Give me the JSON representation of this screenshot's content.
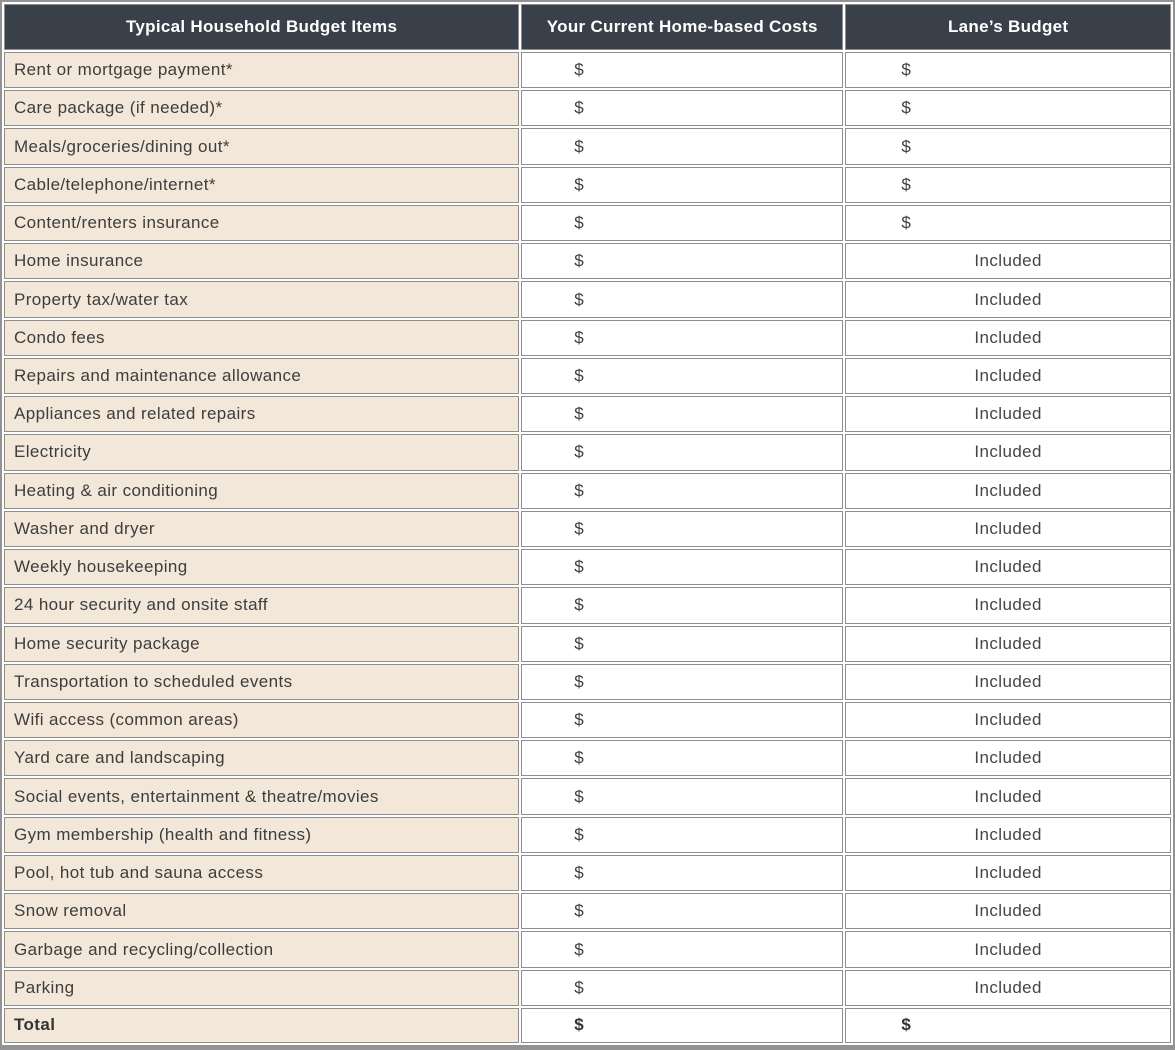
{
  "table": {
    "columns": [
      {
        "label": "Typical Household Budget Items"
      },
      {
        "label": "Your Current Home-based Costs"
      },
      {
        "label": "Lane’s Budget"
      }
    ],
    "currency_placeholder": "$",
    "included_label": "Included",
    "rows": [
      {
        "item": "Rent or mortgage payment*",
        "current": "$",
        "lane": "$"
      },
      {
        "item": "Care package (if needed)*",
        "current": "$",
        "lane": "$"
      },
      {
        "item": "Meals/groceries/dining out*",
        "current": "$",
        "lane": "$"
      },
      {
        "item": "Cable/telephone/internet*",
        "current": "$",
        "lane": "$"
      },
      {
        "item": "Content/renters insurance",
        "current": "$",
        "lane": "$"
      },
      {
        "item": "Home insurance",
        "current": "$",
        "lane": "Included"
      },
      {
        "item": "Property tax/water tax",
        "current": "$",
        "lane": "Included"
      },
      {
        "item": "Condo fees",
        "current": "$",
        "lane": "Included"
      },
      {
        "item": "Repairs and maintenance allowance",
        "current": "$",
        "lane": "Included"
      },
      {
        "item": "Appliances and related repairs",
        "current": "$",
        "lane": "Included"
      },
      {
        "item": "Electricity",
        "current": "$",
        "lane": "Included"
      },
      {
        "item": "Heating & air conditioning",
        "current": "$",
        "lane": "Included"
      },
      {
        "item": "Washer and dryer",
        "current": "$",
        "lane": "Included"
      },
      {
        "item": "Weekly housekeeping",
        "current": "$",
        "lane": "Included"
      },
      {
        "item": "24 hour security and onsite staff",
        "current": "$",
        "lane": "Included"
      },
      {
        "item": "Home security package",
        "current": "$",
        "lane": "Included"
      },
      {
        "item": "Transportation to scheduled events",
        "current": "$",
        "lane": "Included"
      },
      {
        "item": "Wifi access (common areas)",
        "current": "$",
        "lane": "Included"
      },
      {
        "item": "Yard care and landscaping",
        "current": "$",
        "lane": "Included"
      },
      {
        "item": "Social events, entertainment & theatre/movies",
        "current": "$",
        "lane": "Included"
      },
      {
        "item": "Gym membership (health and fitness)",
        "current": "$",
        "lane": "Included"
      },
      {
        "item": "Pool, hot tub and sauna access",
        "current": "$",
        "lane": "Included"
      },
      {
        "item": "Snow removal",
        "current": "$",
        "lane": "Included"
      },
      {
        "item": "Garbage and recycling/collection",
        "current": "$",
        "lane": "Included"
      },
      {
        "item": "Parking",
        "current": "$",
        "lane": "Included"
      }
    ],
    "total_row": {
      "item": "Total",
      "current": "$",
      "lane": "$"
    }
  },
  "colors": {
    "header_bg": "#3a404a",
    "header_text": "#ffffff",
    "item_row_bg": "#f2e7d8",
    "cell_bg": "#ffffff",
    "border": "#8e8e8e",
    "body_text": "#3d3d3d"
  }
}
